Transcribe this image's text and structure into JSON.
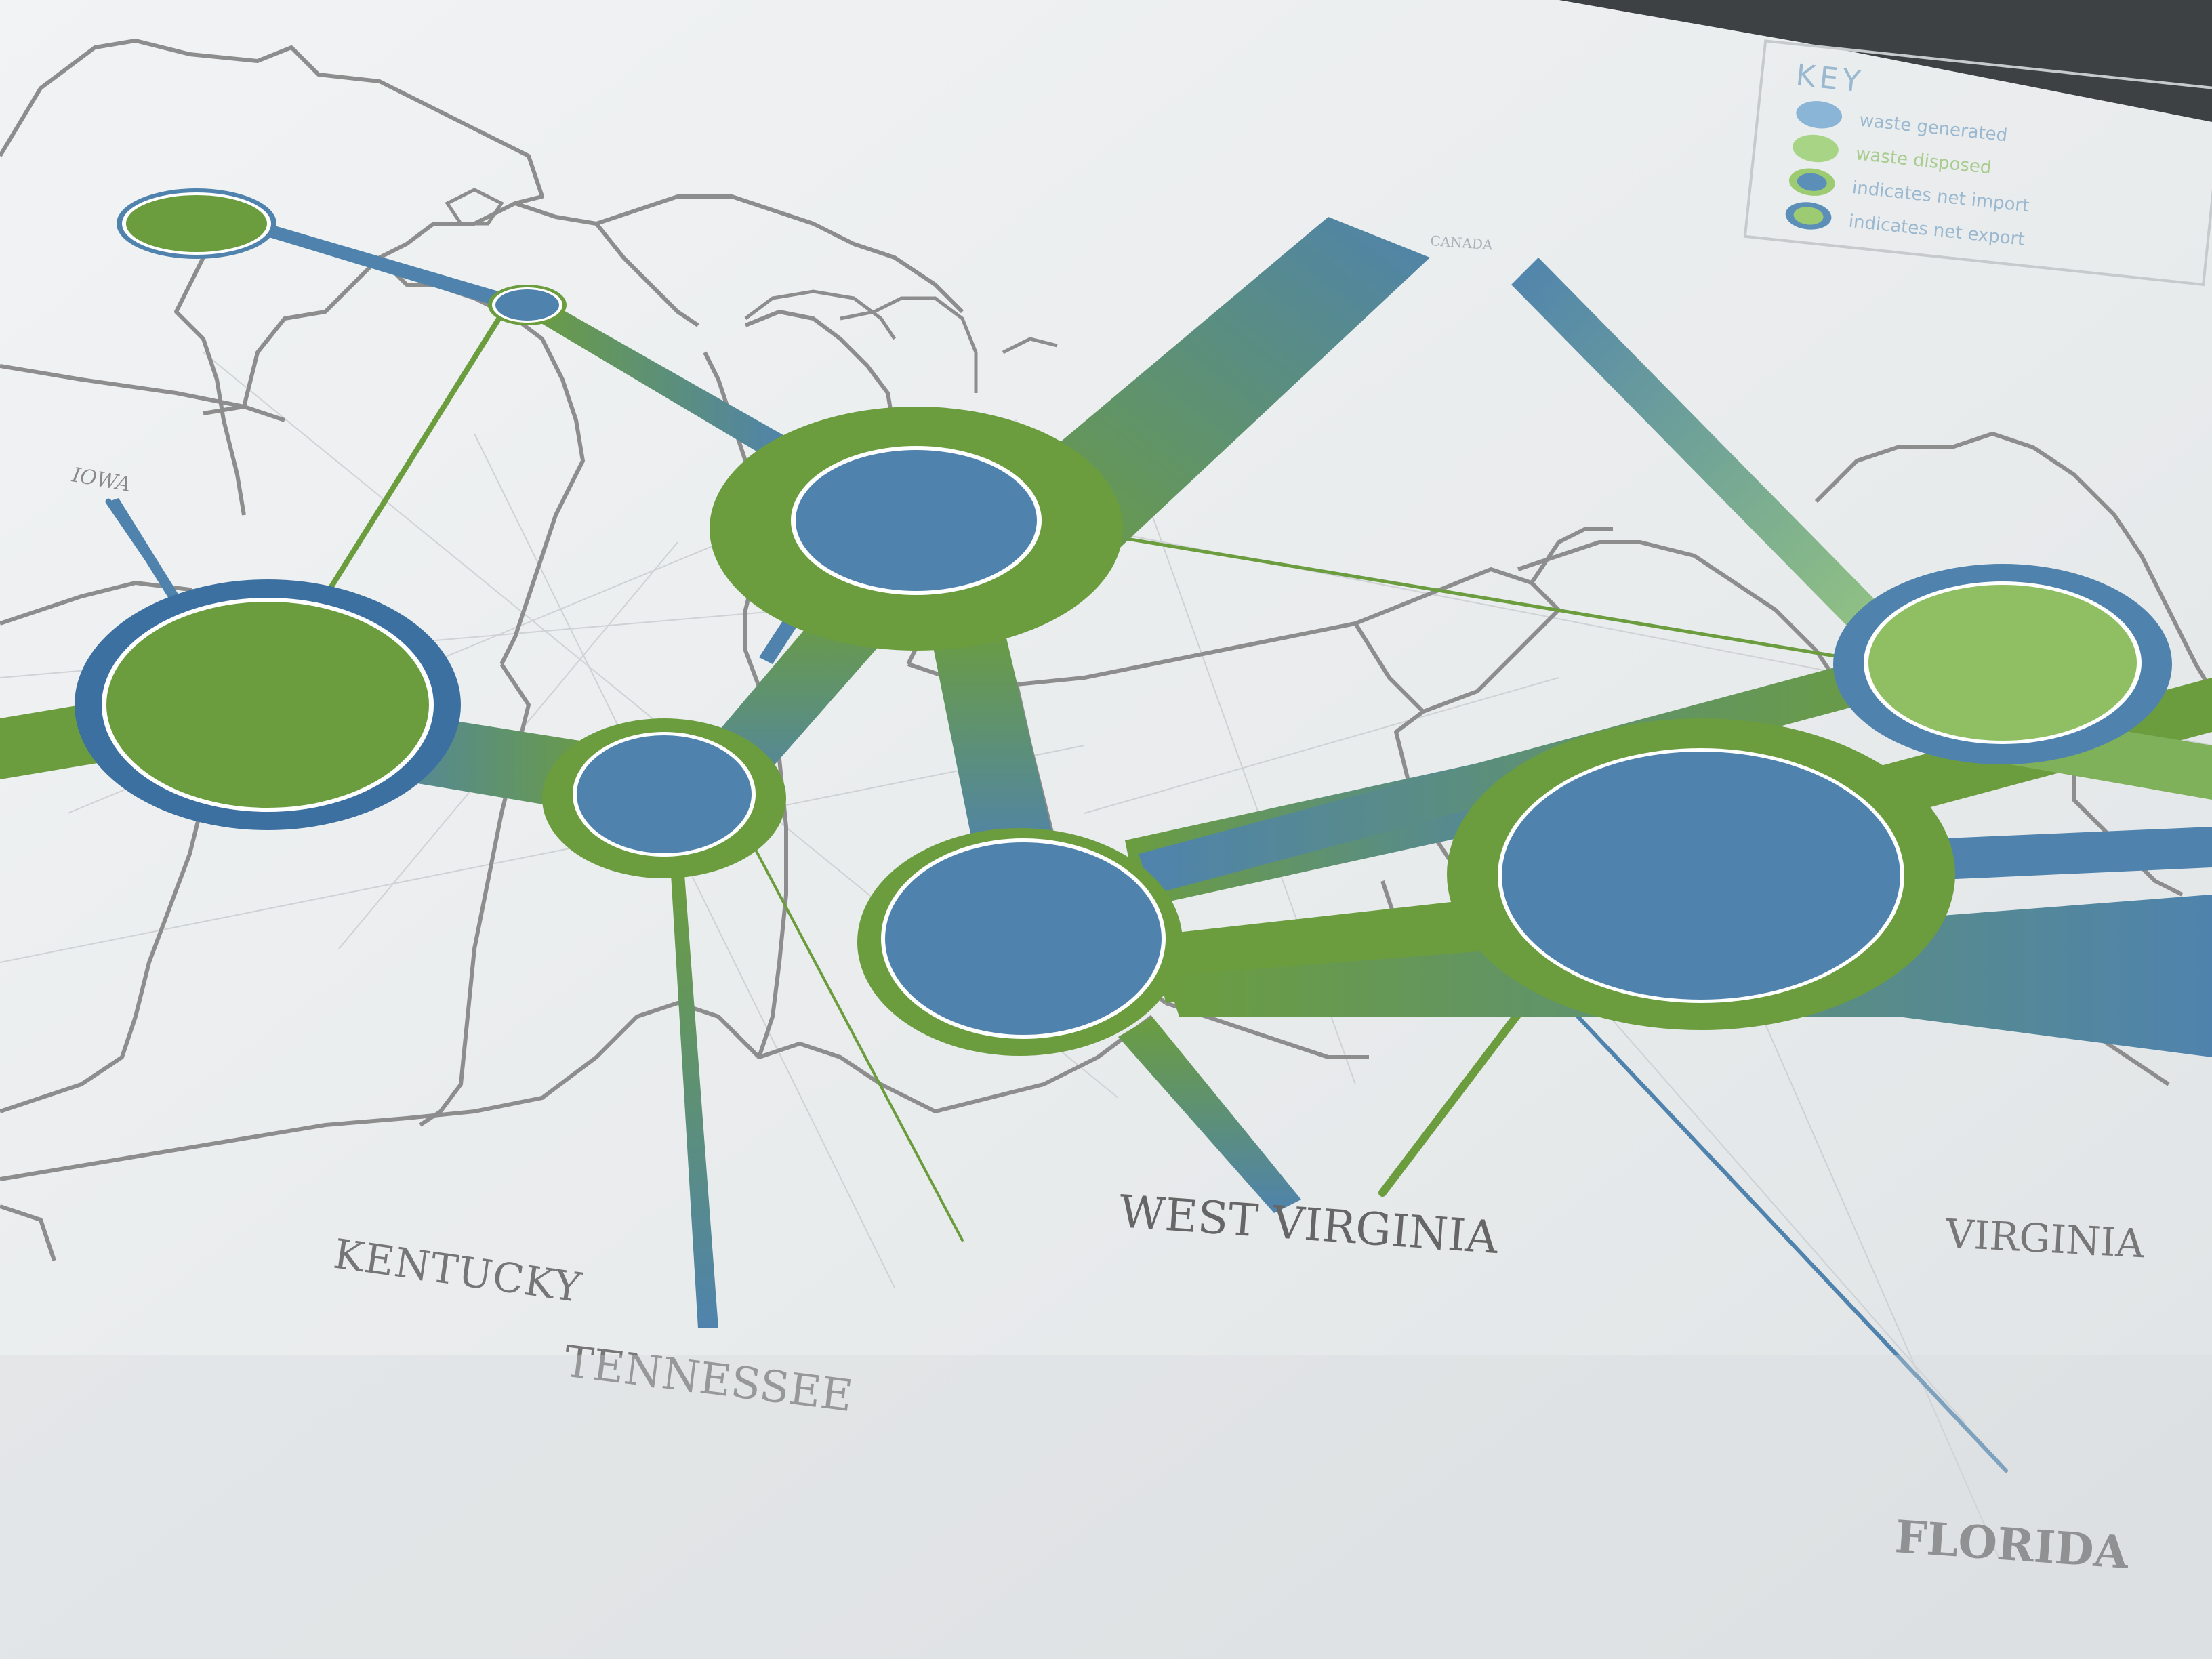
{
  "map": {
    "state_labels": {
      "iowa": "IOWA",
      "kentucky": "KENTUCKY",
      "tennessee": "TENNESSEE",
      "west_virginia": "WEST VIRGINIA",
      "virginia": "VIRGINIA",
      "florida": "FLORIDA",
      "canada": "CANADA"
    },
    "key": {
      "title": "KEY",
      "items": [
        {
          "label": "waste generated",
          "color": "#7aa8cc"
        },
        {
          "label": "waste disposed",
          "color": "#9ccb72"
        },
        {
          "label": "indicates net import",
          "color": "#4a7fa6"
        },
        {
          "label": "indicates net export",
          "color": "#6aa04a"
        }
      ]
    }
  },
  "colors": {
    "paper": "#e9eced",
    "blue": "#4f83ad",
    "blue_dark": "#3c70a0",
    "green": "#6b9d3f",
    "green_light": "#8fbf62",
    "border": "#8a8a8a",
    "label": "#5a5a5a"
  }
}
